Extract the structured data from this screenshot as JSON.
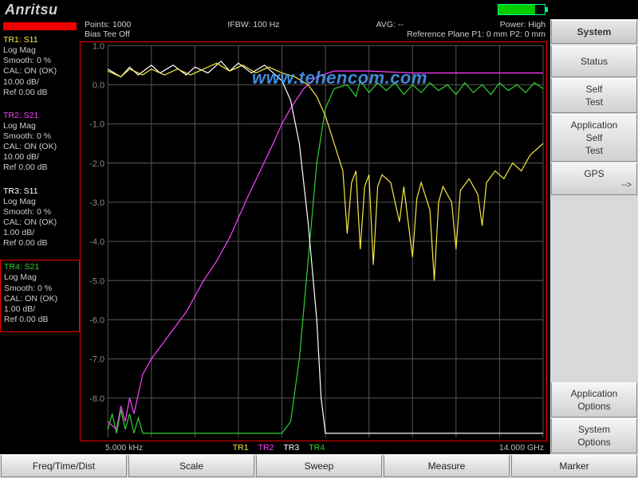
{
  "brand": "Anritsu",
  "battery_pct": 80,
  "header": {
    "points": "Points: 1000",
    "ifbw": "IFBW: 100 Hz",
    "avg": "AVG: --",
    "power": "Power: High",
    "bias": "Bias Tee Off",
    "refplane": "Reference Plane P1: 0 mm P2: 0 mm"
  },
  "watermark": "www.tehencom.com",
  "traces": [
    {
      "id": "TR1",
      "param": "S11",
      "color": "#f5e642",
      "lines": [
        "TR1: S11",
        "Log Mag",
        "Smooth: 0 %",
        "CAL: ON (OK)",
        "10.00 dB/",
        "Ref 0.00 dB"
      ]
    },
    {
      "id": "TR2",
      "param": "S21",
      "color": "#ff40ff",
      "lines": [
        "TR2: S21",
        "Log Mag",
        "Smooth: 0 %",
        "CAL: ON (OK)",
        "10.00 dB/",
        "Ref 0.00 dB"
      ]
    },
    {
      "id": "TR3",
      "param": "S11",
      "color": "#ffffff",
      "lines": [
        "TR3: S11",
        "Log Mag",
        "Smooth: 0 %",
        "CAL: ON (OK)",
        "1.00 dB/",
        "Ref 0.00 dB"
      ]
    },
    {
      "id": "TR4",
      "param": "S21",
      "color": "#30d030",
      "lines": [
        "TR4: S21",
        "Log Mag",
        "Smooth: 0 %",
        "CAL: ON (OK)",
        "1.00 dB/",
        "Ref 0.00 dB"
      ],
      "boxed": true
    }
  ],
  "chart": {
    "type": "line",
    "xlim": [
      0,
      100
    ],
    "ylim": [
      -9,
      1
    ],
    "yticks": [
      1.0,
      0.0,
      -1.0,
      -2.0,
      -3.0,
      -4.0,
      -5.0,
      -6.0,
      -7.0,
      -8.0
    ],
    "xgrid_count": 10,
    "background_color": "#000000",
    "grid_color": "#555555",
    "border_color": "#e00000",
    "axis_label_color": "#8a8a8a",
    "freq_start": "5.000 kHz",
    "freq_end": "14.000 GHz",
    "footer_labels": [
      {
        "text": "TR1",
        "color": "#f5e642"
      },
      {
        "text": "TR2",
        "color": "#ff40ff"
      },
      {
        "text": "TR3",
        "color": "#ffffff"
      },
      {
        "text": "TR4",
        "color": "#30d030"
      }
    ],
    "series": {
      "TR2_magenta": {
        "color": "#ff40ff",
        "width": 1.4,
        "points": [
          [
            0,
            -8.6
          ],
          [
            2,
            -8.8
          ],
          [
            3,
            -8.2
          ],
          [
            4,
            -8.6
          ],
          [
            5,
            -8.0
          ],
          [
            6,
            -8.4
          ],
          [
            8,
            -7.4
          ],
          [
            10,
            -7.0
          ],
          [
            12,
            -6.7
          ],
          [
            14,
            -6.4
          ],
          [
            16,
            -6.1
          ],
          [
            18,
            -5.8
          ],
          [
            20,
            -5.4
          ],
          [
            22,
            -5.0
          ],
          [
            25,
            -4.5
          ],
          [
            28,
            -3.9
          ],
          [
            30,
            -3.4
          ],
          [
            32,
            -2.9
          ],
          [
            35,
            -2.2
          ],
          [
            38,
            -1.5
          ],
          [
            40,
            -1.0
          ],
          [
            42,
            -0.6
          ],
          [
            45,
            -0.1
          ],
          [
            48,
            0.2
          ],
          [
            52,
            0.35
          ],
          [
            60,
            0.35
          ],
          [
            70,
            0.3
          ],
          [
            80,
            0.3
          ],
          [
            90,
            0.3
          ],
          [
            100,
            0.3
          ]
        ]
      },
      "TR4_green": {
        "color": "#30d030",
        "width": 1.2,
        "points": [
          [
            0,
            -8.8
          ],
          [
            1,
            -8.4
          ],
          [
            2,
            -8.9
          ],
          [
            3,
            -8.3
          ],
          [
            4,
            -8.8
          ],
          [
            5,
            -8.4
          ],
          [
            6,
            -8.9
          ],
          [
            7,
            -8.5
          ],
          [
            8,
            -8.9
          ],
          [
            10,
            -8.9
          ],
          [
            15,
            -8.9
          ],
          [
            20,
            -8.9
          ],
          [
            25,
            -8.9
          ],
          [
            30,
            -8.9
          ],
          [
            35,
            -8.9
          ],
          [
            40,
            -8.9
          ],
          [
            42,
            -8.6
          ],
          [
            44,
            -7.0
          ],
          [
            46,
            -4.5
          ],
          [
            48,
            -2.0
          ],
          [
            50,
            -0.6
          ],
          [
            52,
            -0.1
          ],
          [
            55,
            0.0
          ],
          [
            57,
            -0.3
          ],
          [
            58,
            0.1
          ],
          [
            60,
            -0.2
          ],
          [
            62,
            0.05
          ],
          [
            64,
            -0.15
          ],
          [
            66,
            0.05
          ],
          [
            68,
            -0.25
          ],
          [
            70,
            0.0
          ],
          [
            72,
            -0.2
          ],
          [
            74,
            0.05
          ],
          [
            76,
            -0.15
          ],
          [
            78,
            0.0
          ],
          [
            80,
            -0.25
          ],
          [
            82,
            0.05
          ],
          [
            84,
            -0.2
          ],
          [
            86,
            0.0
          ],
          [
            88,
            -0.25
          ],
          [
            90,
            0.05
          ],
          [
            92,
            -0.15
          ],
          [
            94,
            0.0
          ],
          [
            96,
            -0.2
          ],
          [
            98,
            0.05
          ],
          [
            100,
            -0.1
          ]
        ]
      },
      "TR3_white": {
        "color": "#ffffff",
        "width": 1.3,
        "points": [
          [
            0,
            0.4
          ],
          [
            3,
            0.2
          ],
          [
            5,
            0.45
          ],
          [
            7,
            0.25
          ],
          [
            10,
            0.5
          ],
          [
            12,
            0.3
          ],
          [
            15,
            0.5
          ],
          [
            18,
            0.25
          ],
          [
            20,
            0.45
          ],
          [
            23,
            0.3
          ],
          [
            26,
            0.6
          ],
          [
            28,
            0.35
          ],
          [
            30,
            0.55
          ],
          [
            33,
            0.3
          ],
          [
            36,
            0.5
          ],
          [
            38,
            0.3
          ],
          [
            40,
            0.1
          ],
          [
            42,
            -0.4
          ],
          [
            44,
            -1.5
          ],
          [
            46,
            -3.5
          ],
          [
            48,
            -6.0
          ],
          [
            49,
            -8.0
          ],
          [
            50,
            -8.9
          ],
          [
            55,
            -8.9
          ],
          [
            60,
            -8.9
          ],
          [
            70,
            -8.9
          ],
          [
            80,
            -8.9
          ],
          [
            90,
            -8.9
          ],
          [
            100,
            -8.9
          ]
        ]
      },
      "TR1_yellow": {
        "color": "#f5e642",
        "width": 1.3,
        "points": [
          [
            0,
            0.35
          ],
          [
            3,
            0.2
          ],
          [
            5,
            0.4
          ],
          [
            8,
            0.25
          ],
          [
            10,
            0.4
          ],
          [
            13,
            0.25
          ],
          [
            16,
            0.4
          ],
          [
            19,
            0.25
          ],
          [
            22,
            0.4
          ],
          [
            25,
            0.55
          ],
          [
            28,
            0.35
          ],
          [
            31,
            0.5
          ],
          [
            34,
            0.3
          ],
          [
            37,
            0.45
          ],
          [
            40,
            0.3
          ],
          [
            43,
            0.2
          ],
          [
            46,
            0.0
          ],
          [
            48,
            -0.3
          ],
          [
            50,
            -0.8
          ],
          [
            52,
            -1.5
          ],
          [
            54,
            -2.2
          ],
          [
            55,
            -3.8
          ],
          [
            56,
            -2.5
          ],
          [
            57,
            -2.2
          ],
          [
            58,
            -4.2
          ],
          [
            59,
            -2.6
          ],
          [
            60,
            -2.3
          ],
          [
            61,
            -4.6
          ],
          [
            62,
            -2.6
          ],
          [
            63,
            -2.3
          ],
          [
            65,
            -2.5
          ],
          [
            67,
            -3.5
          ],
          [
            68,
            -2.6
          ],
          [
            70,
            -4.4
          ],
          [
            71,
            -2.9
          ],
          [
            72,
            -2.5
          ],
          [
            74,
            -3.2
          ],
          [
            75,
            -5.0
          ],
          [
            76,
            -3.0
          ],
          [
            77,
            -2.6
          ],
          [
            79,
            -3.0
          ],
          [
            80,
            -4.2
          ],
          [
            81,
            -2.7
          ],
          [
            83,
            -2.4
          ],
          [
            85,
            -2.8
          ],
          [
            86,
            -3.6
          ],
          [
            87,
            -2.5
          ],
          [
            89,
            -2.2
          ],
          [
            91,
            -2.4
          ],
          [
            93,
            -2.0
          ],
          [
            95,
            -2.2
          ],
          [
            97,
            -1.8
          ],
          [
            99,
            -1.6
          ],
          [
            100,
            -1.5
          ]
        ]
      }
    }
  },
  "right_menu": {
    "header": "System",
    "items": [
      {
        "l1": "Status"
      },
      {
        "l1": "Self",
        "l2": "Test"
      },
      {
        "l1": "Application",
        "l2": "Self",
        "l3": "Test"
      },
      {
        "l1": "GPS",
        "arrow": true
      }
    ],
    "bottom": [
      {
        "l1": "Application",
        "l2": "Options"
      },
      {
        "l1": "System",
        "l2": "Options"
      }
    ]
  },
  "bottom_keys": [
    "Freq/Time/Dist",
    "Scale",
    "Sweep",
    "Measure",
    "Marker"
  ]
}
